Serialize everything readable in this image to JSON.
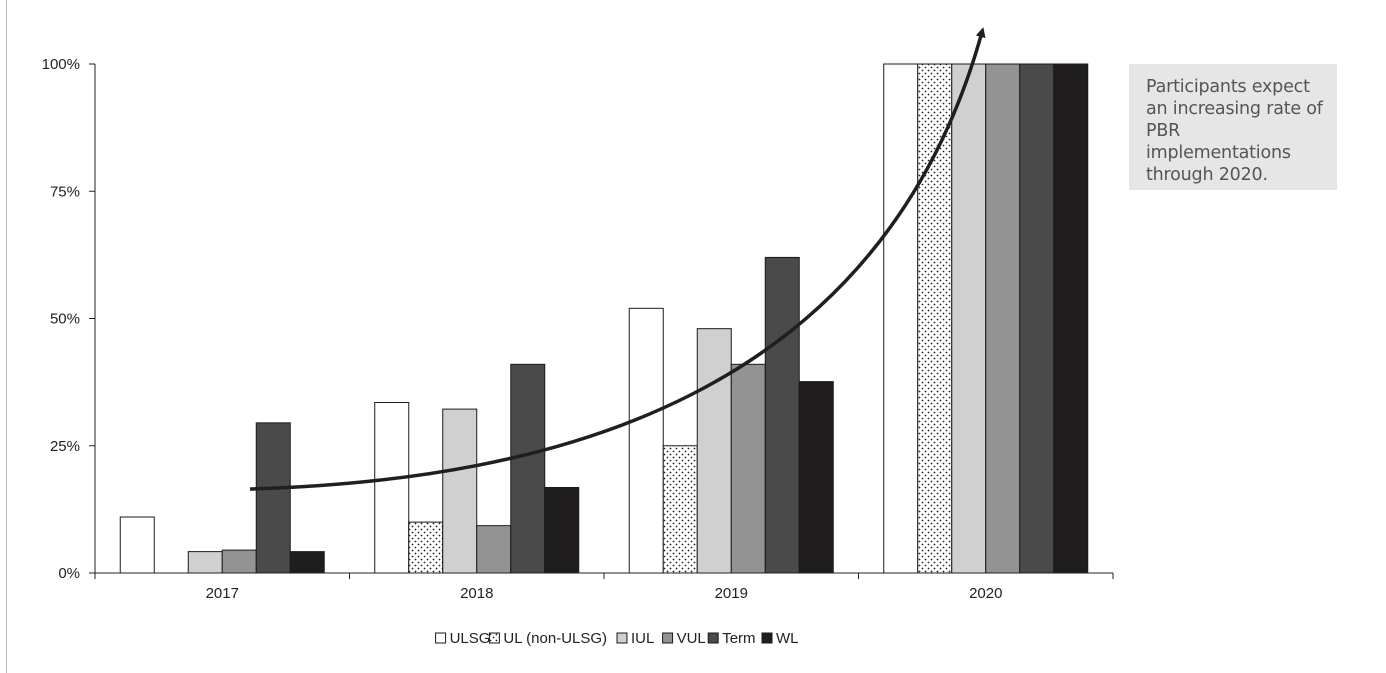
{
  "chart_data": {
    "type": "bar",
    "title": "",
    "xlabel": "",
    "ylabel": "",
    "categories": [
      "2017",
      "2018",
      "2019",
      "2020"
    ],
    "ylim": [
      0,
      100
    ],
    "y_ticks": [
      "0%",
      "25%",
      "50%",
      "75%",
      "100%"
    ],
    "y_tick_values": [
      0,
      25,
      50,
      75,
      100
    ],
    "grid": false,
    "legend_position": "bottom",
    "series": [
      {
        "name": "ULSG",
        "values": [
          11,
          33.5,
          52,
          100
        ],
        "color": "#ffffff",
        "pattern": "none"
      },
      {
        "name": "UL (non-ULSG)",
        "values": [
          null,
          10,
          25,
          100
        ],
        "color": "#ffffff",
        "pattern": "dots"
      },
      {
        "name": "IUL",
        "values": [
          4.2,
          32.2,
          48,
          100
        ],
        "color": "#d0d0d0",
        "pattern": "none"
      },
      {
        "name": "VUL",
        "values": [
          4.5,
          9.3,
          41,
          100
        ],
        "color": "#939393",
        "pattern": "none"
      },
      {
        "name": "Term",
        "values": [
          29.5,
          41,
          62,
          100
        ],
        "color": "#4a4a4a",
        "pattern": "none"
      },
      {
        "name": "WL",
        "values": [
          4.2,
          16.8,
          37.6,
          100
        ],
        "color": "#1f1d1e",
        "pattern": "none"
      }
    ],
    "trend_arrow": "curved arrow rising from 2017 through 2020"
  },
  "callout": {
    "text": "Participants expect\nan increasing rate of\nPBR implementations\nthrough 2020."
  }
}
